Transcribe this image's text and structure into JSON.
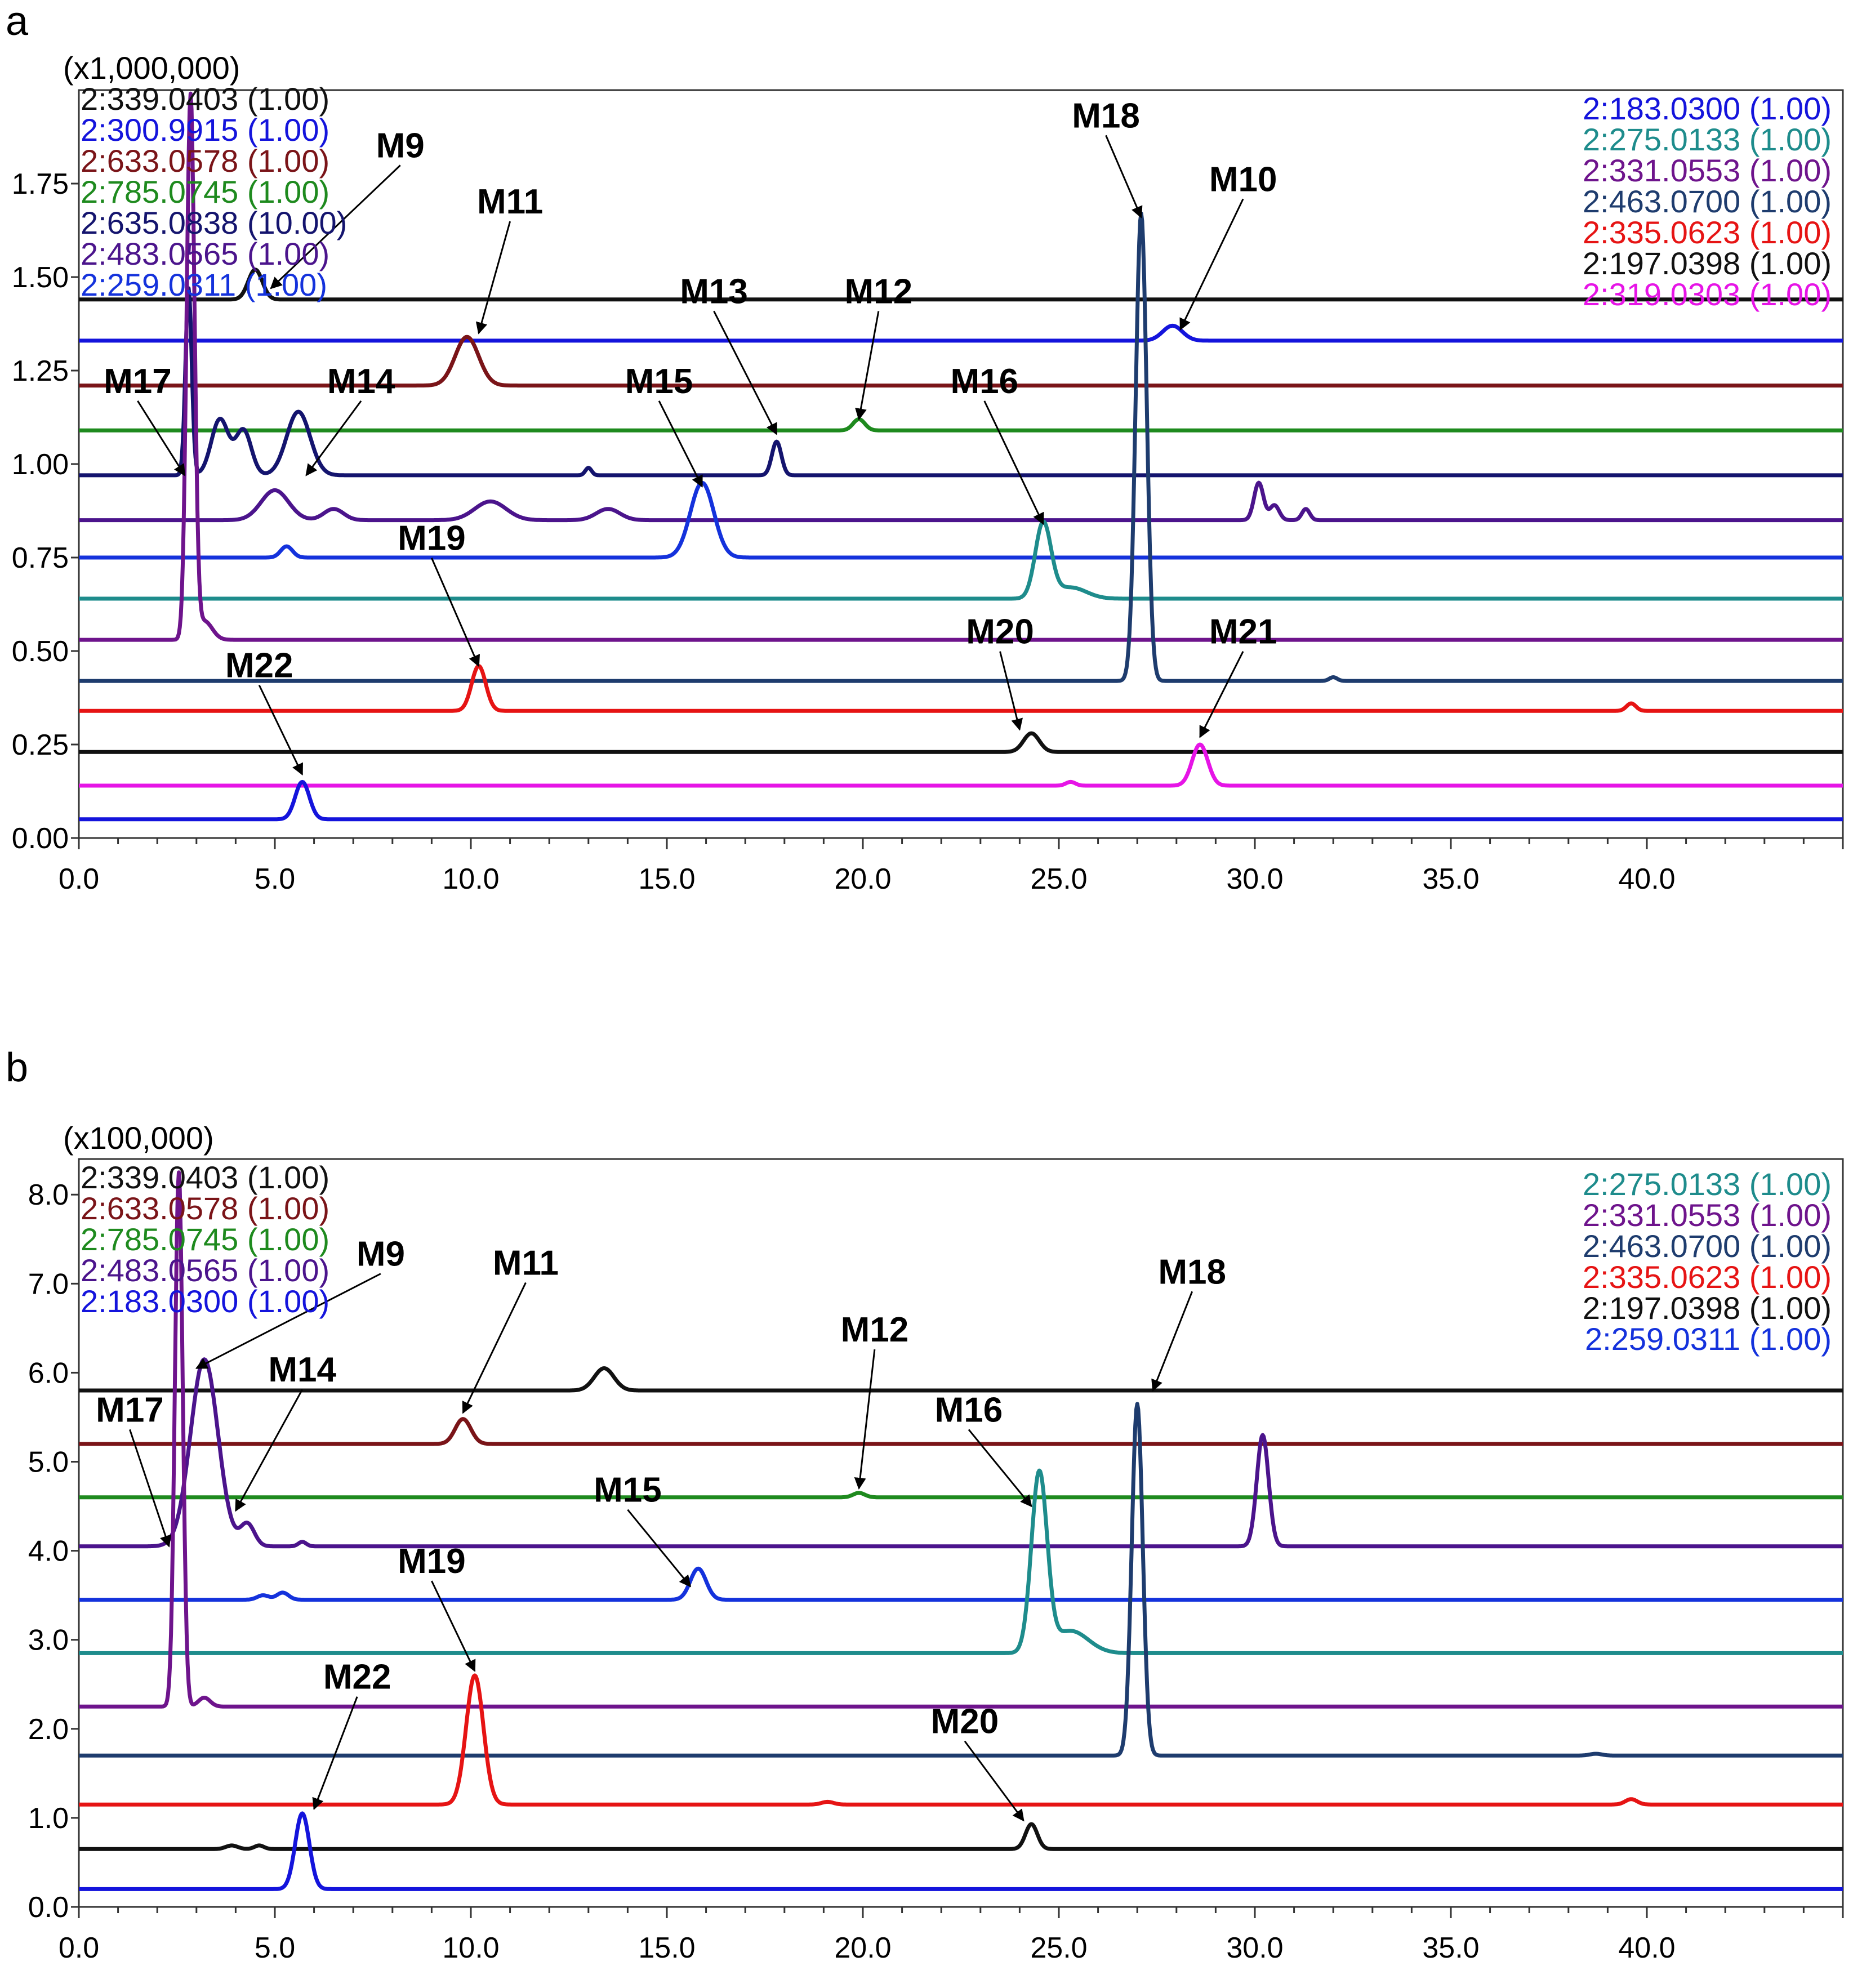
{
  "chart_data": [
    {
      "panel": "a",
      "type": "line",
      "title": "",
      "scale_label": "(x1,000,000)",
      "xlabel": "",
      "ylabel": "",
      "xlim": [
        0,
        45
      ],
      "ylim": [
        0,
        2.0
      ],
      "x_ticks": [
        "0.0",
        "5.0",
        "10.0",
        "15.0",
        "20.0",
        "25.0",
        "30.0",
        "35.0",
        "40.0"
      ],
      "y_ticks": [
        "0.00",
        "0.25",
        "0.50",
        "0.75",
        "1.00",
        "1.25",
        "1.50",
        "1.75"
      ],
      "legend_left": [
        {
          "label": "2:339.0403 (1.00)",
          "color": "#111111"
        },
        {
          "label": "2:300.9915 (1.00)",
          "color": "#1414dc"
        },
        {
          "label": "2:633.0578 (1.00)",
          "color": "#7a1418"
        },
        {
          "label": "2:785.0745 (1.00)",
          "color": "#1e8a1e"
        },
        {
          "label": "2:635.0838 (10.00)",
          "color": "#14146e"
        },
        {
          "label": "2:483.0565 (1.00)",
          "color": "#4b148c"
        },
        {
          "label": "2:259.0311 (1.00)",
          "color": "#1432dc"
        }
      ],
      "legend_right": [
        {
          "label": "2:183.0300 (1.00)",
          "color": "#1414dc"
        },
        {
          "label": "2:275.0133 (1.00)",
          "color": "#1e8c8c"
        },
        {
          "label": "2:331.0553 (1.00)",
          "color": "#6e148c"
        },
        {
          "label": "2:463.0700 (1.00)",
          "color": "#1e3c6e"
        },
        {
          "label": "2:335.0623 (1.00)",
          "color": "#e61414"
        },
        {
          "label": "2:197.0398 (1.00)",
          "color": "#111111"
        },
        {
          "label": "2:319.0303 (1.00)",
          "color": "#e614e6"
        }
      ],
      "series": [
        {
          "name": "2:339.0403",
          "color": "#111111",
          "baseline": 1.44,
          "peaks": [
            [
              4.5,
              0.08,
              0.18
            ]
          ]
        },
        {
          "name": "2:300.9915",
          "color": "#1414dc",
          "baseline": 1.33,
          "peaks": [
            [
              27.9,
              0.04,
              0.25
            ]
          ]
        },
        {
          "name": "2:633.0578",
          "color": "#7a1418",
          "baseline": 1.21,
          "peaks": [
            [
              9.9,
              0.13,
              0.3
            ]
          ]
        },
        {
          "name": "2:785.0745",
          "color": "#1e8a1e",
          "baseline": 1.09,
          "peaks": [
            [
              19.9,
              0.03,
              0.15
            ]
          ]
        },
        {
          "name": "2:635.0838",
          "color": "#14146e",
          "baseline": 0.97,
          "peaks": [
            [
              2.8,
              0.5,
              0.08
            ],
            [
              3.6,
              0.15,
              0.22
            ],
            [
              4.2,
              0.12,
              0.2
            ],
            [
              5.6,
              0.17,
              0.3
            ],
            [
              13.0,
              0.02,
              0.08
            ],
            [
              17.8,
              0.09,
              0.12
            ]
          ]
        },
        {
          "name": "2:483.0565",
          "color": "#4b148c",
          "baseline": 0.85,
          "peaks": [
            [
              5.0,
              0.08,
              0.35
            ],
            [
              6.5,
              0.03,
              0.25
            ],
            [
              10.5,
              0.05,
              0.4
            ],
            [
              13.5,
              0.03,
              0.3
            ],
            [
              30.1,
              0.1,
              0.12
            ],
            [
              30.5,
              0.04,
              0.12
            ],
            [
              31.3,
              0.03,
              0.1
            ]
          ]
        },
        {
          "name": "2:259.0311",
          "color": "#1432dc",
          "baseline": 0.75,
          "peaks": [
            [
              5.3,
              0.03,
              0.15
            ],
            [
              15.9,
              0.2,
              0.3
            ]
          ]
        },
        {
          "name": "2:275.0133",
          "color": "#1e8c8c",
          "baseline": 0.64,
          "peaks": [
            [
              24.6,
              0.2,
              0.2
            ],
            [
              25.3,
              0.03,
              0.4
            ]
          ]
        },
        {
          "name": "2:331.0553",
          "color": "#6e148c",
          "baseline": 0.53,
          "peaks": [
            [
              2.85,
              1.45,
              0.1
            ],
            [
              3.2,
              0.05,
              0.2
            ]
          ]
        },
        {
          "name": "2:463.0700",
          "color": "#1e3c6e",
          "baseline": 0.42,
          "peaks": [
            [
              27.1,
              1.25,
              0.14
            ],
            [
              32.0,
              0.01,
              0.1
            ]
          ]
        },
        {
          "name": "2:335.0623",
          "color": "#e61414",
          "baseline": 0.34,
          "peaks": [
            [
              10.2,
              0.12,
              0.18
            ],
            [
              39.6,
              0.02,
              0.12
            ]
          ]
        },
        {
          "name": "2:197.0398",
          "color": "#111111",
          "baseline": 0.23,
          "peaks": [
            [
              24.3,
              0.05,
              0.2
            ]
          ]
        },
        {
          "name": "2:319.0303",
          "color": "#e614e6",
          "baseline": 0.14,
          "peaks": [
            [
              25.3,
              0.01,
              0.12
            ],
            [
              28.6,
              0.11,
              0.2
            ]
          ]
        },
        {
          "name": "2:183.0300",
          "color": "#1414dc",
          "baseline": 0.05,
          "peaks": [
            [
              5.7,
              0.1,
              0.18
            ]
          ]
        }
      ],
      "annotations": [
        {
          "label": "M9",
          "text_x": 8.2,
          "text_y": 1.82,
          "target_x": 4.9,
          "target_y": 1.47
        },
        {
          "label": "M11",
          "text_x": 11.0,
          "text_y": 1.67,
          "target_x": 10.2,
          "target_y": 1.35
        },
        {
          "label": "M13",
          "text_x": 16.2,
          "text_y": 1.43,
          "target_x": 17.8,
          "target_y": 1.08
        },
        {
          "label": "M12",
          "text_x": 20.4,
          "text_y": 1.43,
          "target_x": 19.9,
          "target_y": 1.12
        },
        {
          "label": "M18",
          "text_x": 26.2,
          "text_y": 1.9,
          "target_x": 27.1,
          "target_y": 1.66
        },
        {
          "label": "M10",
          "text_x": 29.7,
          "text_y": 1.73,
          "target_x": 28.1,
          "target_y": 1.36
        },
        {
          "label": "M17",
          "text_x": 1.5,
          "text_y": 1.19,
          "target_x": 2.7,
          "target_y": 0.97
        },
        {
          "label": "M14",
          "text_x": 7.2,
          "text_y": 1.19,
          "target_x": 5.8,
          "target_y": 0.97
        },
        {
          "label": "M15",
          "text_x": 14.8,
          "text_y": 1.19,
          "target_x": 15.9,
          "target_y": 0.94
        },
        {
          "label": "M16",
          "text_x": 23.1,
          "text_y": 1.19,
          "target_x": 24.6,
          "target_y": 0.84
        },
        {
          "label": "M19",
          "text_x": 9.0,
          "text_y": 0.77,
          "target_x": 10.2,
          "target_y": 0.46
        },
        {
          "label": "M20",
          "text_x": 23.5,
          "text_y": 0.52,
          "target_x": 24.0,
          "target_y": 0.29
        },
        {
          "label": "M21",
          "text_x": 29.7,
          "text_y": 0.52,
          "target_x": 28.6,
          "target_y": 0.27
        },
        {
          "label": "M22",
          "text_x": 4.6,
          "text_y": 0.43,
          "target_x": 5.7,
          "target_y": 0.17
        }
      ]
    },
    {
      "panel": "b",
      "type": "line",
      "title": "",
      "scale_label": "(x100,000)",
      "xlabel": "",
      "ylabel": "",
      "xlim": [
        0,
        45
      ],
      "ylim": [
        0,
        8.4
      ],
      "x_ticks": [
        "0.0",
        "5.0",
        "10.0",
        "15.0",
        "20.0",
        "25.0",
        "30.0",
        "35.0",
        "40.0"
      ],
      "y_ticks": [
        "0.0",
        "1.0",
        "2.0",
        "3.0",
        "4.0",
        "5.0",
        "6.0",
        "7.0",
        "8.0"
      ],
      "legend_left": [
        {
          "label": "2:339.0403 (1.00)",
          "color": "#111111"
        },
        {
          "label": "2:633.0578 (1.00)",
          "color": "#7a1418"
        },
        {
          "label": "2:785.0745 (1.00)",
          "color": "#1e8a1e"
        },
        {
          "label": "2:483.0565 (1.00)",
          "color": "#4b148c"
        },
        {
          "label": "2:183.0300 (1.00)",
          "color": "#1414dc"
        }
      ],
      "legend_right": [
        {
          "label": "2:275.0133 (1.00)",
          "color": "#1e8c8c"
        },
        {
          "label": "2:331.0553 (1.00)",
          "color": "#6e148c"
        },
        {
          "label": "2:463.0700 (1.00)",
          "color": "#1e3c6e"
        },
        {
          "label": "2:335.0623 (1.00)",
          "color": "#e61414"
        },
        {
          "label": "2:197.0398 (1.00)",
          "color": "#111111"
        },
        {
          "label": "2:259.0311 (1.00)",
          "color": "#1432dc"
        }
      ],
      "series": [
        {
          "name": "2:339.0403",
          "color": "#111111",
          "baseline": 5.8,
          "peaks": [
            [
              13.4,
              0.25,
              0.25
            ]
          ]
        },
        {
          "name": "2:633.0578",
          "color": "#7a1418",
          "baseline": 5.2,
          "peaks": [
            [
              9.8,
              0.28,
              0.2
            ]
          ]
        },
        {
          "name": "2:785.0745",
          "color": "#1e8a1e",
          "baseline": 4.6,
          "peaks": [
            [
              19.9,
              0.05,
              0.15
            ]
          ]
        },
        {
          "name": "2:483.0565",
          "color": "#4b148c",
          "baseline": 4.05,
          "peaks": [
            [
              3.2,
              2.1,
              0.35
            ],
            [
              4.3,
              0.25,
              0.18
            ],
            [
              5.7,
              0.05,
              0.1
            ],
            [
              30.2,
              1.25,
              0.15
            ]
          ]
        },
        {
          "name": "2:259.0311",
          "color": "#1432dc",
          "baseline": 3.45,
          "peaks": [
            [
              4.7,
              0.05,
              0.15
            ],
            [
              5.2,
              0.08,
              0.15
            ],
            [
              15.8,
              0.35,
              0.2
            ]
          ]
        },
        {
          "name": "2:275.0133",
          "color": "#1e8c8c",
          "baseline": 2.85,
          "peaks": [
            [
              24.5,
              2.0,
              0.2
            ],
            [
              25.3,
              0.25,
              0.45
            ]
          ]
        },
        {
          "name": "2:331.0553",
          "color": "#6e148c",
          "baseline": 2.25,
          "peaks": [
            [
              2.55,
              6.0,
              0.1
            ],
            [
              3.2,
              0.1,
              0.15
            ]
          ]
        },
        {
          "name": "2:463.0700",
          "color": "#1e3c6e",
          "baseline": 1.7,
          "peaks": [
            [
              27.0,
              3.95,
              0.14
            ],
            [
              38.7,
              0.02,
              0.15
            ]
          ]
        },
        {
          "name": "2:335.0623",
          "color": "#e61414",
          "baseline": 1.15,
          "peaks": [
            [
              10.1,
              1.45,
              0.22
            ],
            [
              19.1,
              0.03,
              0.15
            ],
            [
              39.6,
              0.06,
              0.15
            ]
          ]
        },
        {
          "name": "2:197.0398",
          "color": "#111111",
          "baseline": 0.65,
          "peaks": [
            [
              3.9,
              0.04,
              0.15
            ],
            [
              4.6,
              0.04,
              0.12
            ],
            [
              24.3,
              0.28,
              0.15
            ]
          ]
        },
        {
          "name": "2:183.0300",
          "color": "#1414dc",
          "baseline": 0.2,
          "peaks": [
            [
              5.7,
              0.85,
              0.18
            ]
          ]
        }
      ],
      "annotations": [
        {
          "label": "M9",
          "text_x": 7.7,
          "text_y": 7.2,
          "target_x": 3.0,
          "target_y": 6.05
        },
        {
          "label": "M11",
          "text_x": 11.4,
          "text_y": 7.1,
          "target_x": 9.8,
          "target_y": 5.55
        },
        {
          "label": "M12",
          "text_x": 20.3,
          "text_y": 6.35,
          "target_x": 19.9,
          "target_y": 4.7
        },
        {
          "label": "M18",
          "text_x": 28.4,
          "text_y": 7.0,
          "target_x": 27.4,
          "target_y": 5.8
        },
        {
          "label": "M14",
          "text_x": 5.7,
          "text_y": 5.9,
          "target_x": 4.0,
          "target_y": 4.45
        },
        {
          "label": "M17",
          "text_x": 1.3,
          "text_y": 5.45,
          "target_x": 2.3,
          "target_y": 4.05
        },
        {
          "label": "M15",
          "text_x": 14.0,
          "text_y": 4.55,
          "target_x": 15.6,
          "target_y": 3.6
        },
        {
          "label": "M16",
          "text_x": 22.7,
          "text_y": 5.45,
          "target_x": 24.3,
          "target_y": 4.5
        },
        {
          "label": "M19",
          "text_x": 9.0,
          "text_y": 3.75,
          "target_x": 10.1,
          "target_y": 2.65
        },
        {
          "label": "M22",
          "text_x": 7.1,
          "text_y": 2.45,
          "target_x": 6.0,
          "target_y": 1.1
        },
        {
          "label": "M20",
          "text_x": 22.6,
          "text_y": 1.95,
          "target_x": 24.1,
          "target_y": 0.97
        }
      ]
    }
  ]
}
